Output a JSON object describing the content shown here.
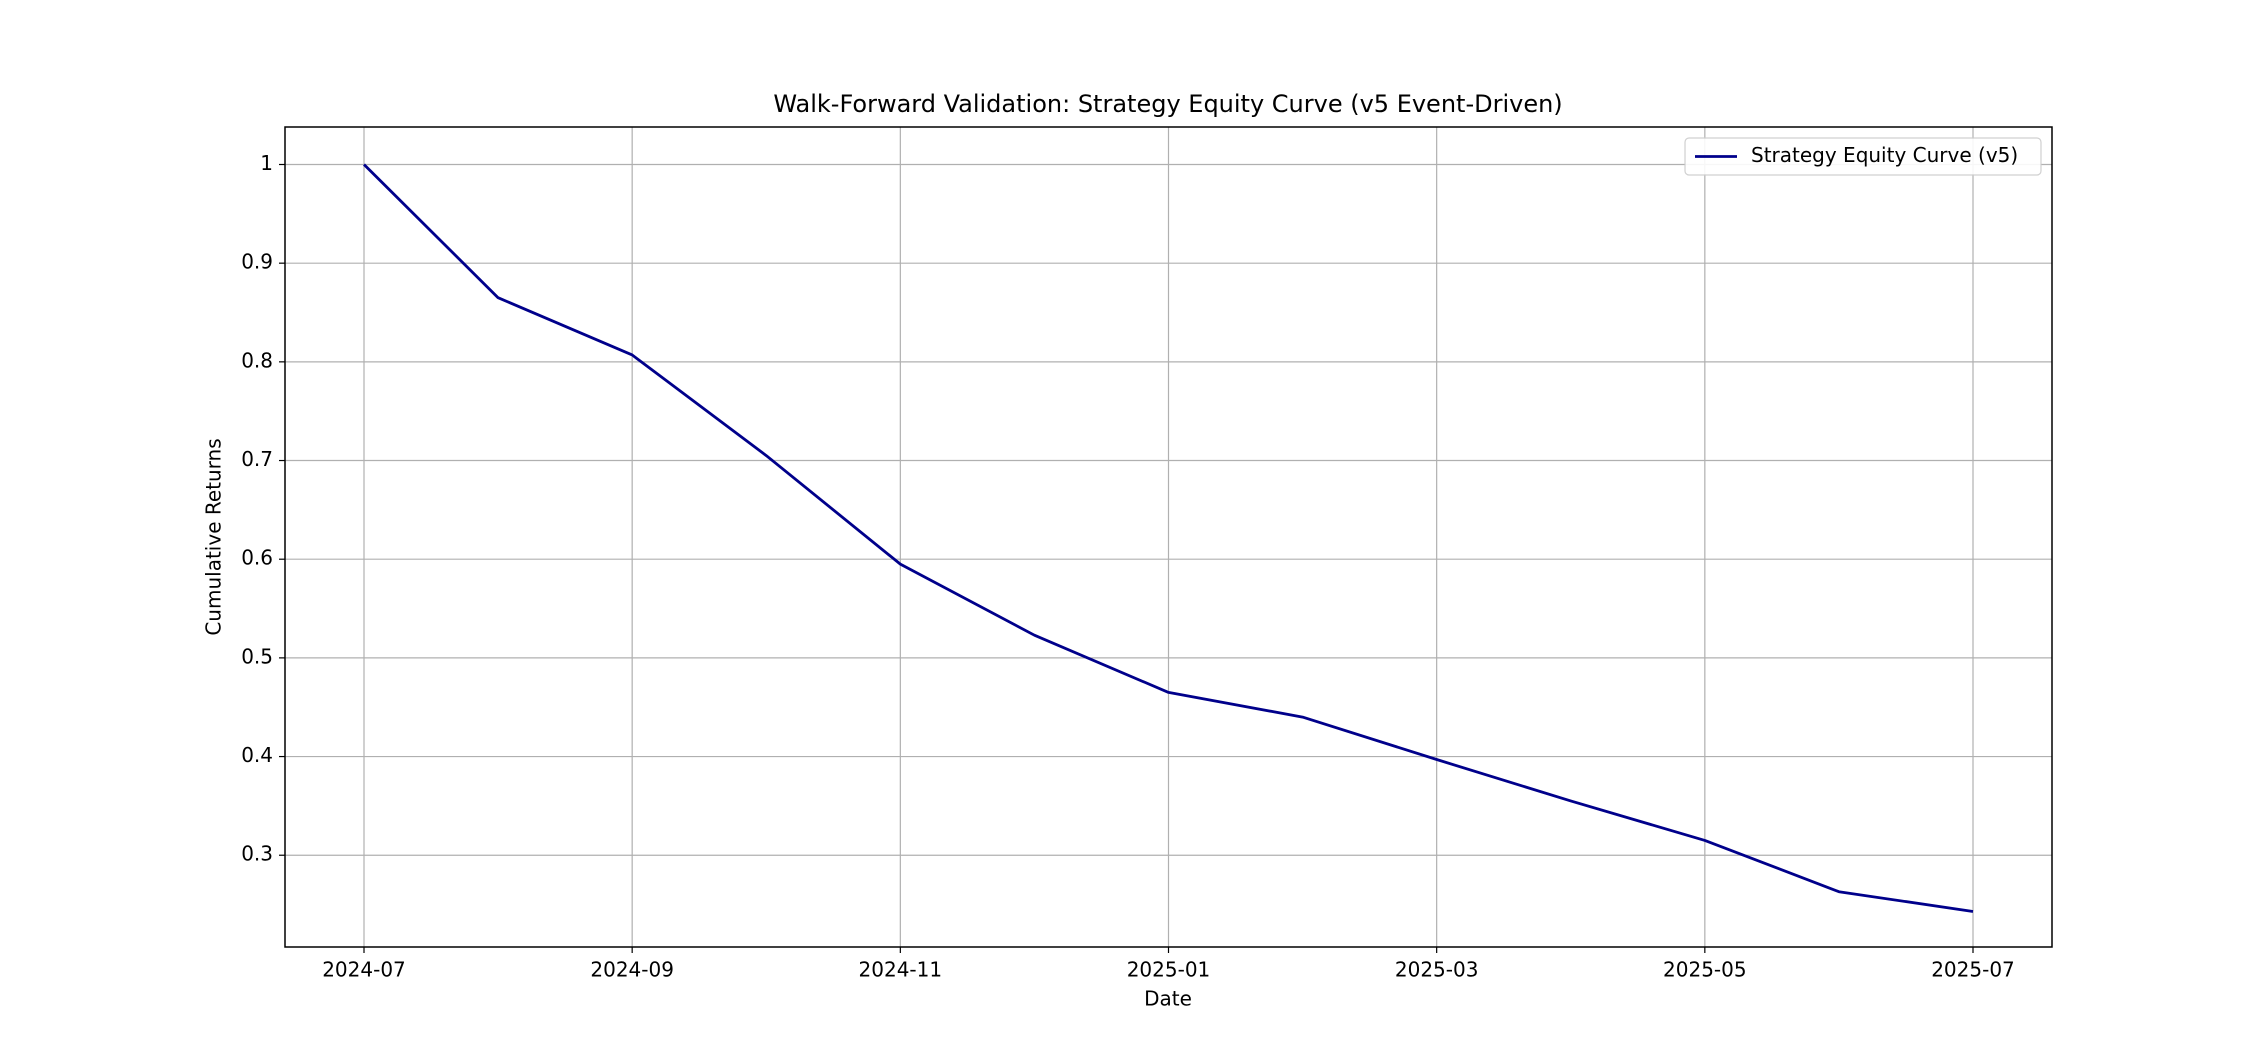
{
  "chart_data": {
    "type": "line",
    "title": "Walk-Forward Validation: Strategy Equity Curve (v5 Event-Driven)",
    "x_label": "Date",
    "y_label": "Cumulative Returns",
    "x": [
      "2024-07",
      "2024-08",
      "2024-09",
      "2024-10",
      "2024-11",
      "2024-12",
      "2025-01",
      "2025-02",
      "2025-03",
      "2025-04",
      "2025-05",
      "2025-06",
      "2025-07"
    ],
    "series": [
      {
        "name": "Strategy Equity Curve (v5)",
        "color": "#00008b",
        "values": [
          1.0,
          0.865,
          0.807,
          0.705,
          0.595,
          0.523,
          0.465,
          0.44,
          0.397,
          0.355,
          0.315,
          0.263,
          0.243
        ]
      }
    ],
    "xlim": [
      "2024-07",
      "2025-07"
    ],
    "xticks": [
      "2024-07",
      "2024-09",
      "2024-11",
      "2025-01",
      "2025-03",
      "2025-05",
      "2025-07"
    ],
    "ylim": [
      0.207,
      1.038
    ],
    "yticks": [
      0.3,
      0.4,
      0.5,
      0.6,
      0.7,
      0.8,
      0.9,
      1.0
    ],
    "grid": true,
    "legend": "upper right"
  }
}
